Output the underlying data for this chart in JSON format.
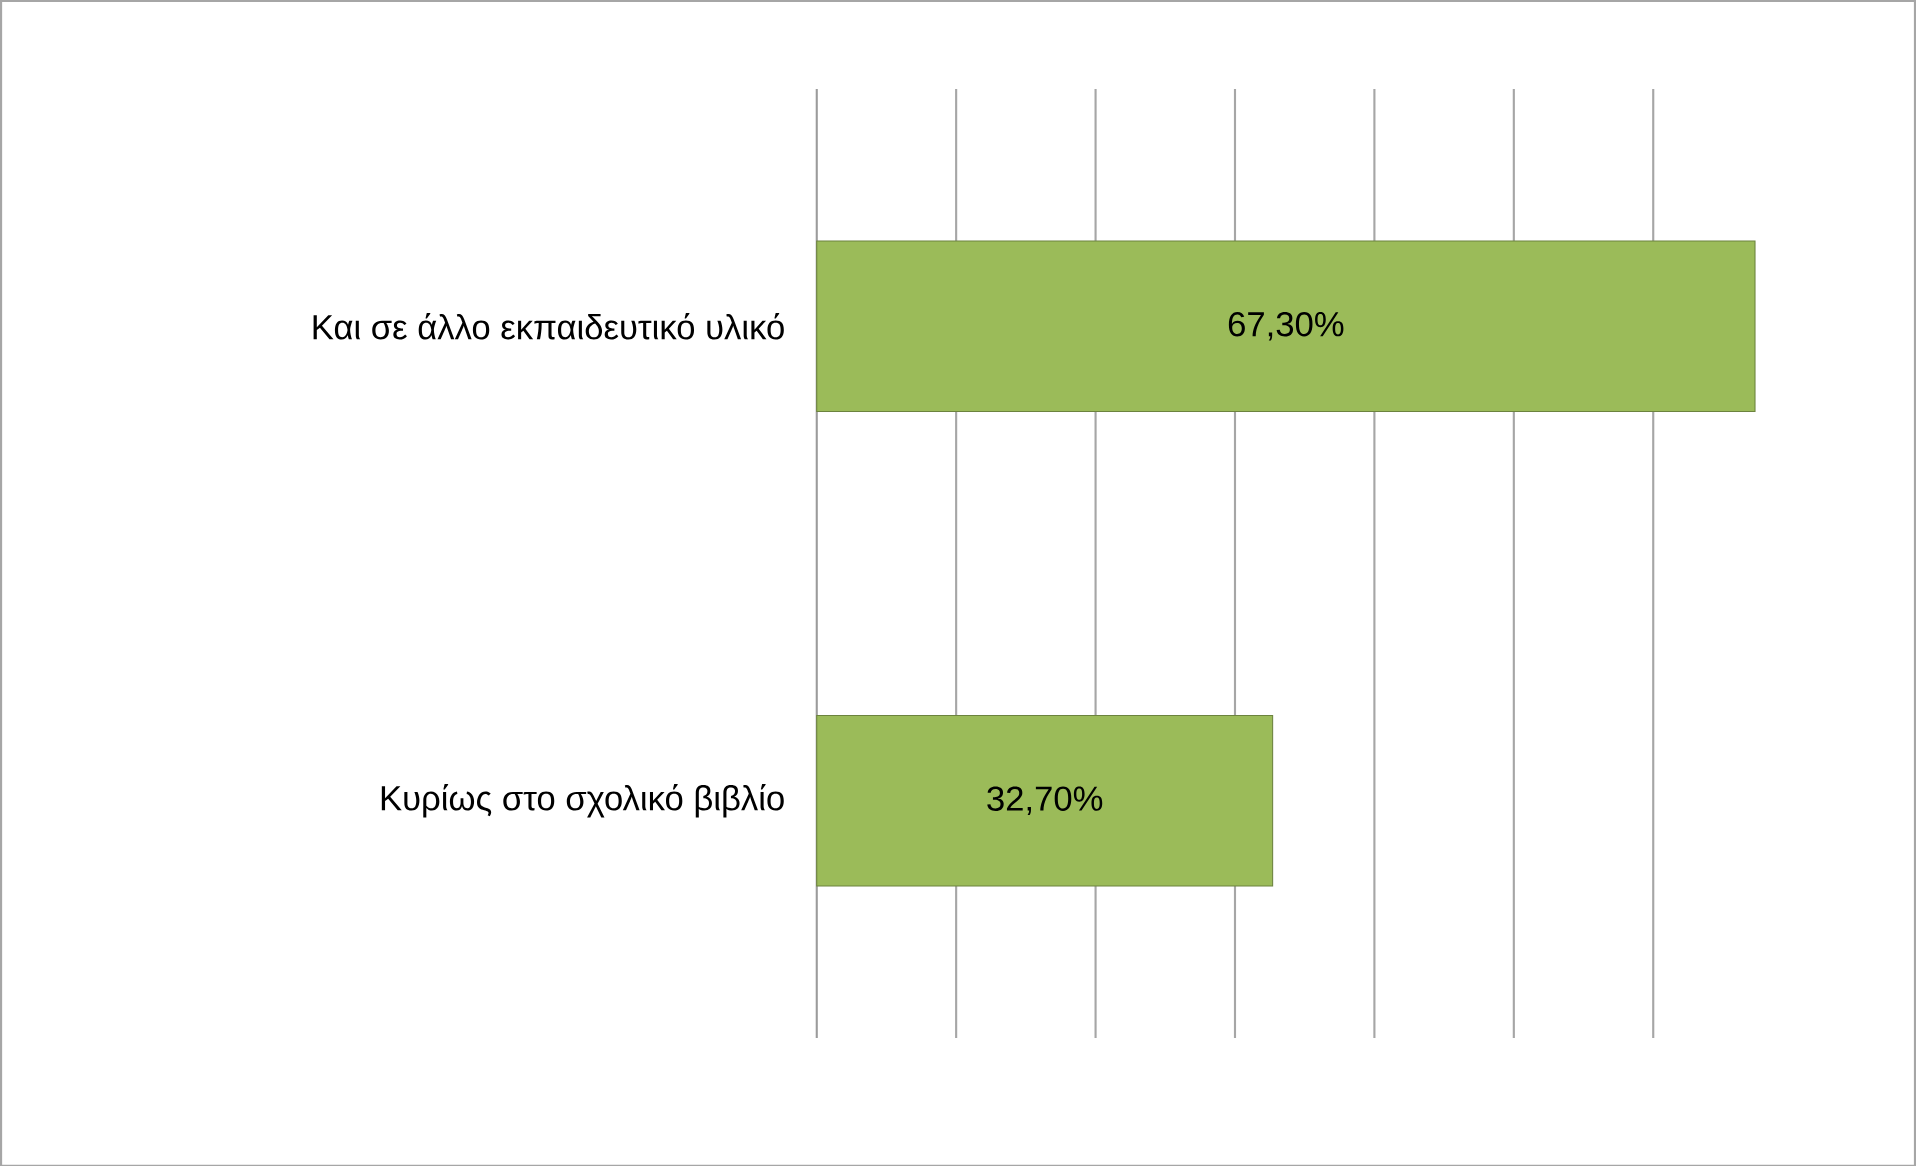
{
  "chart_data": {
    "type": "bar",
    "orientation": "horizontal",
    "categories": [
      "Και σε άλλο εκπαιδευτικό υλικό",
      "Κυρίως στο σχολικό βιβλίο"
    ],
    "values": [
      67.3,
      32.7
    ],
    "color": "#9bbb59",
    "value_labels": [
      "67,30%",
      "32,70%"
    ],
    "grid": "x",
    "tick_labels": "y"
  }
}
